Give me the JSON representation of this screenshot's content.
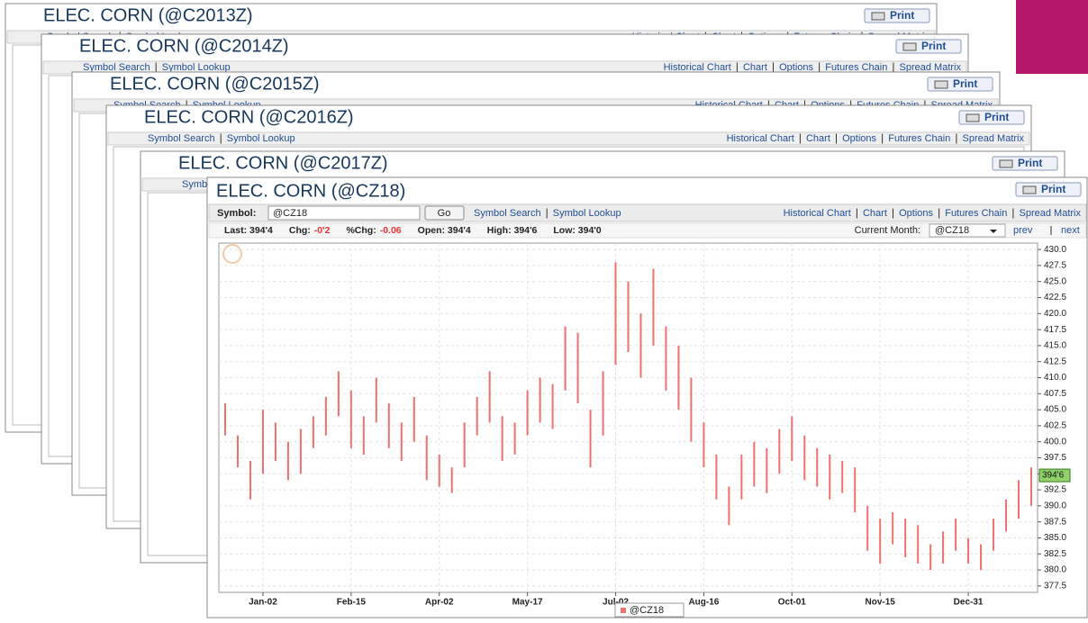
{
  "windows": [
    {
      "title": "ELEC. CORN  (@C2013Z)"
    },
    {
      "title": "ELEC. CORN  (@C2014Z)"
    },
    {
      "title": "ELEC. CORN  (@C2015Z)"
    },
    {
      "title": "ELEC. CORN  (@C2016Z)"
    },
    {
      "title": "ELEC. CORN  (@C2017Z)"
    }
  ],
  "nav": {
    "symbol_search": "Symbol Search",
    "symbol_lookup": "Symbol Lookup",
    "historical_chart": "Historical Chart",
    "chart": "Chart",
    "options": "Options",
    "futures_chain": "Futures Chain",
    "spread_matrix": "Spread Matrix",
    "print": "Print"
  },
  "main": {
    "title": "ELEC. CORN  (@CZ18)",
    "symbol_label": "Symbol:",
    "symbol_value": "@CZ18",
    "go": "Go",
    "quote": {
      "last": "Last: 394'4",
      "chg_label": "Chg:",
      "chg": "-0'2",
      "pchg_label": "%Chg:",
      "pchg": "-0.06",
      "open": "Open: 394'4",
      "high": "High: 394'6",
      "low": "Low: 394'0"
    },
    "current_month_label": "Current Month:",
    "current_month": "@CZ18",
    "prev": "prev",
    "next": "next"
  },
  "chart_data": {
    "type": "range-bar",
    "categories": [
      null,
      null,
      null,
      "Jan-02",
      null,
      null,
      null,
      null,
      null,
      null,
      "Feb-15",
      null,
      null,
      null,
      null,
      null,
      null,
      "Apr-02",
      null,
      null,
      null,
      null,
      null,
      null,
      "May-17",
      null,
      null,
      null,
      null,
      null,
      null,
      "Jul-02",
      null,
      null,
      null,
      null,
      null,
      null,
      "Aug-16",
      null,
      null,
      null,
      null,
      null,
      null,
      "Oct-01",
      null,
      null,
      null,
      null,
      null,
      null,
      "Nov-15",
      null,
      null,
      null,
      null,
      null,
      null,
      "Dec-31",
      null,
      null,
      null,
      null,
      null
    ],
    "series": [
      {
        "name": "@CZ18",
        "color": "#f07070",
        "high": [
          406,
          401,
          397,
          405,
          403,
          400,
          402,
          404,
          407,
          411,
          408,
          404,
          410,
          406,
          403,
          407,
          401,
          398,
          396,
          403,
          407,
          411,
          404,
          403,
          408,
          410,
          409,
          418,
          417,
          405,
          411,
          428,
          425,
          420,
          427,
          418,
          415,
          410,
          403,
          398,
          393,
          398,
          400,
          399,
          402,
          404,
          401,
          399,
          398,
          397,
          396,
          390,
          388,
          389,
          388,
          387,
          384,
          386,
          388,
          385,
          384,
          388,
          391,
          394,
          396
        ],
        "low": [
          401,
          396,
          391,
          395,
          397,
          394,
          395,
          399,
          401,
          404,
          399,
          398,
          403,
          399,
          397,
          400,
          394,
          393,
          392,
          396,
          401,
          403,
          397,
          398,
          401,
          403,
          402,
          408,
          406,
          396,
          401,
          412,
          414,
          410,
          415,
          408,
          405,
          400,
          396,
          391,
          387,
          391,
          393,
          392,
          395,
          397,
          394,
          393,
          391,
          392,
          389,
          383,
          381,
          384,
          382,
          381,
          380,
          381,
          383,
          381,
          380,
          383,
          386,
          388,
          390
        ]
      }
    ],
    "ylim": [
      376.5,
      431
    ],
    "yticks": [
      {
        "value": 377.5,
        "label": "377.5"
      },
      {
        "value": 380,
        "label": "380.0"
      },
      382.5,
      {
        "value": 385,
        "label": "385.0"
      },
      387.5,
      {
        "value": 390,
        "label": "390.0"
      },
      392.5,
      {
        "value": 395,
        "label": "395.0"
      },
      397.5,
      {
        "value": 400,
        "label": "400.0"
      },
      402.5,
      {
        "value": 405,
        "label": "405.0"
      },
      407.5,
      {
        "value": 410,
        "label": "410.0"
      },
      412.5,
      {
        "value": 415,
        "label": "415.0"
      },
      417.5,
      {
        "value": 420,
        "label": "420.0"
      },
      422.5,
      {
        "value": 425,
        "label": "425.0"
      },
      427.5,
      {
        "value": 430,
        "label": "430.0"
      }
    ],
    "last_marker": {
      "value": 394.75,
      "label": "394'6"
    },
    "grid": true
  }
}
